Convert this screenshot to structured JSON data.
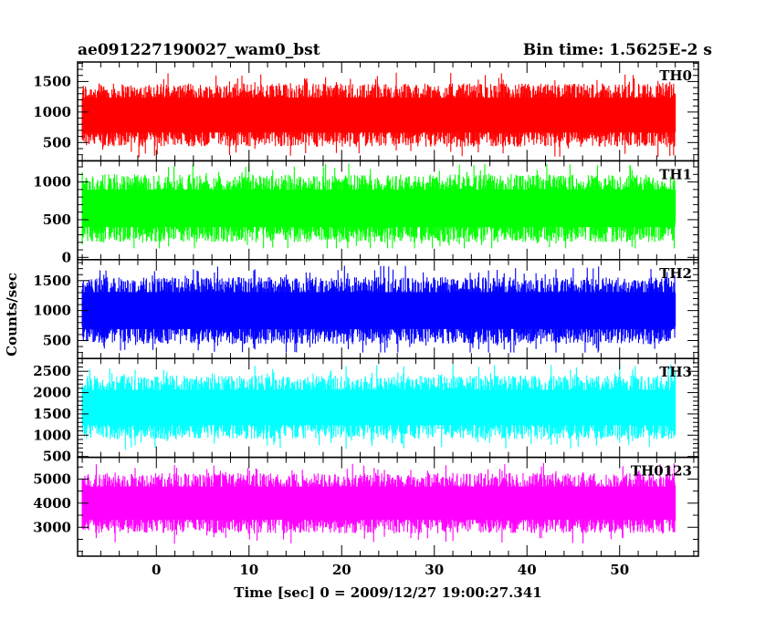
{
  "chart_data": {
    "type": "line",
    "title": "ae091227190027_wam0_bst",
    "bin_time": "Bin time: 1.5625E-2 s",
    "xlabel": "Time [sec] 0 = 2009/12/27 19:00:27.341",
    "ylabel": "Counts/sec",
    "xlim": [
      -8.5,
      58.5
    ],
    "x_data_range": [
      -8.0,
      56.0
    ],
    "xticks": [
      0,
      10,
      20,
      30,
      40,
      50
    ],
    "grid": false,
    "panels": [
      {
        "name": "TH0",
        "color": "#ff0000",
        "ylim": [
          200,
          1820
        ],
        "yticks": [
          500,
          1000,
          1500
        ],
        "baseline": 950,
        "spread": 520,
        "floor": 250,
        "ceil": 1820
      },
      {
        "name": "TH1",
        "color": "#00ff00",
        "ylim": [
          -30,
          1280
        ],
        "yticks": [
          0,
          500,
          1000
        ],
        "baseline": 650,
        "spread": 450,
        "floor": 120,
        "ceil": 1280
      },
      {
        "name": "TH2",
        "color": "#0000ff",
        "ylim": [
          200,
          1850
        ],
        "yticks": [
          500,
          1000,
          1500
        ],
        "baseline": 1000,
        "spread": 560,
        "floor": 300,
        "ceil": 1850
      },
      {
        "name": "TH3",
        "color": "#00ffff",
        "ylim": [
          480,
          2800
        ],
        "yticks": [
          500,
          1000,
          1500,
          2000,
          2500
        ],
        "baseline": 1650,
        "spread": 750,
        "floor": 600,
        "ceil": 2800
      },
      {
        "name": "TH0123",
        "color": "#ff00ff",
        "ylim": [
          1800,
          5900
        ],
        "yticks": [
          3000,
          4000,
          5000
        ],
        "baseline": 4000,
        "spread": 1250,
        "floor": 1900,
        "ceil": 5900
      }
    ]
  }
}
